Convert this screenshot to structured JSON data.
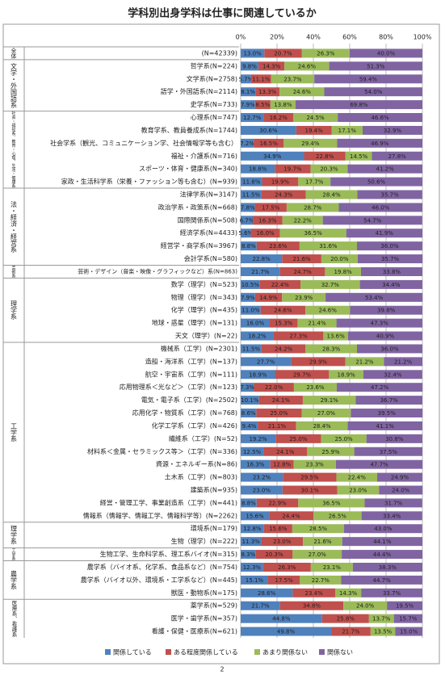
{
  "chart_data": {
    "type": "stacked-barh",
    "title": "学科別出身学科は仕事に関連しているか",
    "page_number": "2",
    "xlim": [
      0,
      100
    ],
    "xticks": [
      {
        "value": 0,
        "label": "0%"
      },
      {
        "value": 20,
        "label": "20%"
      },
      {
        "value": 40,
        "label": "40%"
      },
      {
        "value": 60,
        "label": "60%"
      },
      {
        "value": 80,
        "label": "80%"
      },
      {
        "value": 100,
        "label": "100%"
      }
    ],
    "grid": true,
    "legend": "bottom",
    "group_labels": [
      "全体",
      "文学・外国語系",
      null,
      null,
      null,
      "社会・福祉系、教育・心理、生活・健康系",
      null,
      null,
      null,
      null,
      null,
      "法・経済・経営系",
      null,
      null,
      null,
      null,
      null,
      "芸術系",
      "理学系",
      null,
      null,
      null,
      null,
      "工学系",
      null,
      null,
      null,
      null,
      null,
      null,
      null,
      null,
      null,
      null,
      null,
      null,
      null,
      "理学系",
      null,
      "工学系",
      "農学系",
      null,
      null,
      "医療系、看護系",
      null,
      null
    ],
    "categories": [
      "(N=42339)",
      "哲学系(N=224)",
      "文学系(N=2758)",
      "語学・外国語系(N=2114)",
      "史学系(N=733)",
      "心理系(N=747)",
      "教育学系、教員養成系(N=1744)",
      "社会学系（観光、コミュニケーション学、社会情報学等も含む）",
      "福祉・介護系(N=716)",
      "スポーツ・体育・健康系(N=340)",
      "家政・生活科学系（栄養・ファッション等も含む）(N=939)",
      "法律学系(N=3147)",
      "政治学系・政策系(N=668)",
      "国際関係系(N=508)",
      "経済学系(N=4433)",
      "経営学・商学系(N=3967)",
      "会計学系(N=580)",
      "芸術・デザイン（音楽・映像・グラフィックなど）系(N=863)",
      "数学（理学）(N=523)",
      "物理（理学）(N=343)",
      "化学（理学）(N=435)",
      "地球・惑星（理学）(N=131)",
      "天文（理学）(N=22)",
      "機械系（工学）(N=2301)",
      "造船・海洋系（工学）(N=137)",
      "航空・宇宙系（工学）(N=111)",
      "応用物理系＜光など＞（工学）(N=123)",
      "電気・電子系（工学）(N=2502)",
      "応用化学・物質系（工学）(N=768)",
      "化学工学系（工学）(N=426)",
      "繊維系（工学）(N=52)",
      "材料系＜金属・セラミックス等＞（工学）(N=336)",
      "資源・エネルギー系(N=86)",
      "土木系（工学）(N=803)",
      "建築系(N=935)",
      "経営・管理工学、事業創造系（工学）(N=441)",
      "情報系（情報学、情報工学、情報科学等）(N=2262)",
      "環境系(N=179)",
      "生物（理学）(N=222)",
      "生物工学、生命科学系、理工系バイオ(N=315)",
      "農学系（バイオ系、化学系、食品系など）(N=754)",
      "農学系（バイオ以外、環境系・工学系など）(N=445)",
      "獣医・動物系(N=175)",
      "薬学系(N=529)",
      "医学・歯学系(N=357)",
      "看護・保健・医療系(N=621)"
    ],
    "series": [
      {
        "name": "関係している",
        "color": "#4f81bd",
        "label_color": "#ffffff",
        "values": [
          13.0,
          9.8,
          5.7,
          8.1,
          7.9,
          12.7,
          30.6,
          7.2,
          34.9,
          18.8,
          11.8,
          11.5,
          7.8,
          6.7,
          5.6,
          8.8,
          22.8,
          21.7,
          10.5,
          7.9,
          11.0,
          16.0,
          18.2,
          11.5,
          27.7,
          18.9,
          7.3,
          10.1,
          8.6,
          9.4,
          19.2,
          12.5,
          16.3,
          23.2,
          23.0,
          8.8,
          15.6,
          12.8,
          11.3,
          8.3,
          12.3,
          15.1,
          28.6,
          21.7,
          44.8,
          49.8
        ],
        "value_labels": [
          "13.0%",
          "9.8%",
          "5.7%",
          "8.1%",
          "7.9%",
          "12.7%",
          "30.6%",
          "7.2%",
          "34.9%",
          "18.8%",
          "11.8%",
          "11.5%",
          "7.8%",
          "6.7%",
          "5.6%",
          "8.8%",
          "22.8%",
          "21.7%",
          "10.5%",
          "7.9%",
          "11.0%",
          "16.0%",
          "18.2%",
          "11.5%",
          "27.7%",
          "18.9%",
          "7.3%",
          "10.1%",
          "8.6%",
          "9.4%",
          "19.2%",
          "12.5%",
          "16.3%",
          "23.2%",
          "23.0%",
          "8.8%",
          "15.6%",
          "12.8%",
          "11.3%",
          "8.3%",
          "12.3%",
          "15.1%",
          "28.6%",
          "21.7%",
          "44.8%",
          "49.8%"
        ]
      },
      {
        "name": "ある程度関係している",
        "color": "#c0504d",
        "label_color": "#222222",
        "values": [
          20.7,
          14.3,
          11.1,
          13.3,
          8.5,
          16.2,
          19.4,
          16.5,
          22.8,
          19.7,
          19.9,
          24.3,
          17.5,
          16.3,
          16.0,
          23.6,
          21.6,
          24.7,
          22.4,
          14.9,
          24.6,
          15.3,
          27.3,
          24.2,
          29.9,
          29.7,
          22.0,
          24.1,
          25.0,
          21.1,
          25.0,
          24.1,
          12.8,
          29.5,
          30.1,
          22.9,
          24.4,
          15.6,
          23.0,
          20.3,
          26.3,
          17.5,
          23.4,
          34.8,
          25.8,
          21.7
        ],
        "value_labels": [
          "20.7%",
          "14.3%",
          "11.1%",
          "13.3%",
          "8.5%",
          "16.2%",
          "19.4%",
          "16.5%",
          "22.8%",
          "19.7%",
          "19.9%",
          "24.3%",
          "17.5%",
          "16.3%",
          "16.0%",
          "23.6%",
          "21.6%",
          "24.7%",
          "22.4%",
          "14.9%",
          "24.6%",
          "15.3%",
          "27.3%",
          "24.2%",
          "29.9%",
          "29.7%",
          "22.0%",
          "24.1%",
          "25.0%",
          "21.1%",
          "25.0%",
          "24.1%",
          "12.8%",
          "29.5%",
          "30.1%",
          "22.9%",
          "24.4%",
          "15.6%",
          "23.0%",
          "20.3%",
          "26.3%",
          "17.5%",
          "23.4%",
          "34.8%",
          "25.8%",
          "21.7%"
        ]
      },
      {
        "name": "あまり関係ない",
        "color": "#9bbb59",
        "label_color": "#222222",
        "values": [
          26.3,
          24.6,
          23.7,
          24.6,
          13.8,
          24.5,
          17.1,
          29.4,
          14.5,
          20.3,
          17.7,
          28.4,
          28.7,
          22.2,
          36.5,
          31.6,
          20.0,
          19.8,
          32.7,
          23.9,
          24.6,
          21.4,
          13.6,
          28.3,
          21.2,
          18.9,
          23.6,
          29.1,
          27.0,
          28.4,
          25.0,
          25.9,
          23.3,
          22.4,
          23.0,
          36.5,
          26.5,
          28.5,
          21.6,
          27.0,
          23.1,
          22.7,
          14.3,
          24.0,
          13.7,
          13.5
        ],
        "value_labels": [
          "26.3%",
          "24.6%",
          "23.7%",
          "24.6%",
          "13.8%",
          "24.5%",
          "17.1%",
          "29.4%",
          "14.5%",
          "20.3%",
          "17.7%",
          "28.4%",
          "28.7%",
          "22.2%",
          "36.5%",
          "31.6%",
          "20.0%",
          "19.8%",
          "32.7%",
          "23.9%",
          "24.6%",
          "21.4%",
          "13.6%",
          "28.3%",
          "21.2%",
          "18.9%",
          "23.6%",
          "29.1%",
          "27.0%",
          "28.4%",
          "25.0%",
          "25.9%",
          "23.3%",
          "22.4%",
          "23.0%",
          "36.5%",
          "26.5%",
          "28.5%",
          "21.6%",
          "27.0%",
          "23.1%",
          "22.7%",
          "14.3%",
          "24.0%",
          "13.7%",
          "13.5%"
        ]
      },
      {
        "name": "関係ない",
        "color": "#8064a2",
        "label_color": "#ffffff",
        "values": [
          40.0,
          51.3,
          59.4,
          54.0,
          69.8,
          46.6,
          32.9,
          46.9,
          27.8,
          41.2,
          50.6,
          35.7,
          46.0,
          54.7,
          41.9,
          36.0,
          35.7,
          33.8,
          34.4,
          53.4,
          39.8,
          47.3,
          40.9,
          36.0,
          21.2,
          32.4,
          47.2,
          36.7,
          39.5,
          41.1,
          30.8,
          37.5,
          47.7,
          24.9,
          24.0,
          31.7,
          33.4,
          43.0,
          44.1,
          44.4,
          38.3,
          44.7,
          33.7,
          19.5,
          15.7,
          15.0
        ],
        "value_labels": [
          "40.0%",
          "51.3%",
          "59.4%",
          "54.0%",
          "69.8%",
          "46.6%",
          "32.9%",
          "46.9%",
          "27.8%",
          "41.2%",
          "50.6%",
          "35.7%",
          "46.0%",
          "54.7%",
          "41.9%",
          "36.0%",
          "35.7%",
          "33.8%",
          "34.4%",
          "53.4%",
          "39.8%",
          "47.3%",
          "40.9%",
          "36.0%",
          "21.2%",
          "32.4%",
          "47.2%",
          "36.7%",
          "39.5%",
          "41.1%",
          "30.8%",
          "37.5%",
          "47.7%",
          "24.9%",
          "24.0%",
          "31.7%",
          "33.4%",
          "43.0%",
          "44.1%",
          "44.4%",
          "38.3%",
          "44.7%",
          "33.7%",
          "19.5%",
          "15.7%",
          "15.0%"
        ]
      }
    ]
  }
}
